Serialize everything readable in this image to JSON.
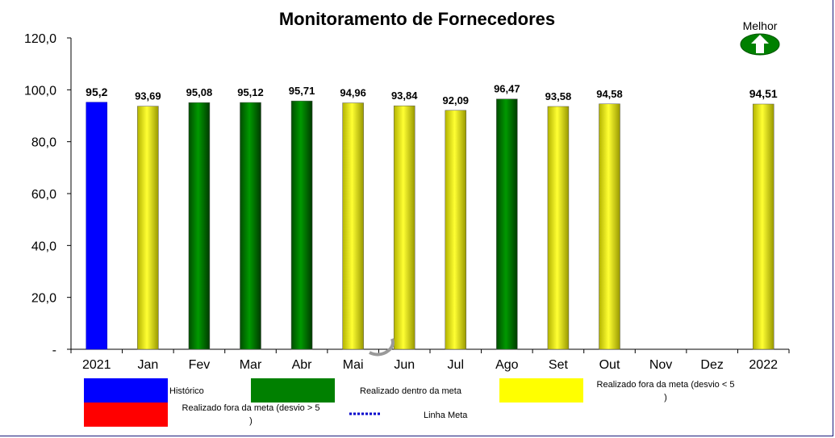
{
  "chart_data": {
    "type": "bar",
    "title": "Monitoramento de Fornecedores",
    "categories": [
      "2021",
      "Jan",
      "Fev",
      "Mar",
      "Abr",
      "Mai",
      "Jun",
      "Jul",
      "Ago",
      "Set",
      "Out",
      "Nov",
      "Dez",
      "2022"
    ],
    "values": [
      95.2,
      93.69,
      95.08,
      95.12,
      95.71,
      94.96,
      93.84,
      92.09,
      96.47,
      93.58,
      94.58,
      null,
      null,
      94.51
    ],
    "value_labels": [
      "95,2",
      "93,69",
      "95,08",
      "95,12",
      "95,71",
      "94,96",
      "93,84",
      "92,09",
      "96,47",
      "93,58",
      "94,58",
      "",
      "",
      "94,51"
    ],
    "bar_status": [
      "historico",
      "fora_menor",
      "dentro",
      "dentro",
      "dentro",
      "fora_menor",
      "fora_menor",
      "fora_menor",
      "dentro",
      "fora_menor",
      "fora_menor",
      "",
      "",
      "fora_menor"
    ],
    "ylim": [
      0,
      120
    ],
    "yticks": [
      0,
      20,
      40,
      60,
      80,
      100,
      120
    ],
    "ytick_labels": [
      "-",
      "20,0",
      "40,0",
      "60,0",
      "80,0",
      "100,0",
      "120,0"
    ],
    "grid": false,
    "legend_position": "bottom",
    "legend": [
      {
        "key": "historico",
        "label": "Histórico",
        "color": "#0000ff"
      },
      {
        "key": "dentro",
        "label": "Realizado dentro da meta",
        "color": "#008000"
      },
      {
        "key": "fora_menor",
        "label": "Realizado fora da meta (desvio < 5%)",
        "color": "#ffff00"
      },
      {
        "key": "fora_maior",
        "label": "Realizado fora da meta (desvio > 5%)",
        "color": "#ff0000"
      },
      {
        "key": "linha_meta",
        "label": "Linha Meta",
        "color": "#0000cc"
      }
    ]
  },
  "indicator": {
    "label": "Melhor",
    "icon": "up-arrow-icon",
    "color": "#008000"
  }
}
